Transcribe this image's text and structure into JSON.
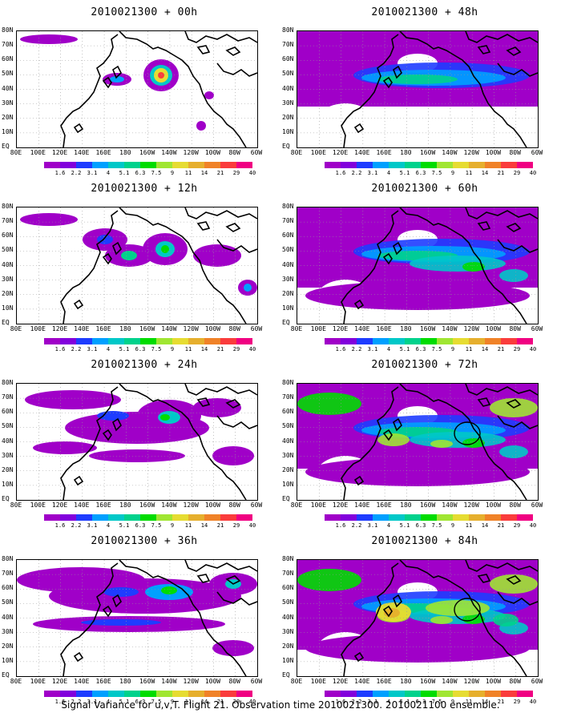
{
  "panels": [
    {
      "title": "2010021300 + 00h",
      "level": 0
    },
    {
      "title": "2010021300 + 12h",
      "level": 1
    },
    {
      "title": "2010021300 + 24h",
      "level": 2
    },
    {
      "title": "2010021300 + 36h",
      "level": 3
    },
    {
      "title": "2010021300 + 48h",
      "level": 4
    },
    {
      "title": "2010021300 + 60h",
      "level": 5
    },
    {
      "title": "2010021300 + 72h",
      "level": 6
    },
    {
      "title": "2010021300 + 84h",
      "level": 7
    }
  ],
  "lat_labels": [
    "80N",
    "70N",
    "60N",
    "50N",
    "40N",
    "30N",
    "20N",
    "10N",
    "EQ"
  ],
  "lon_labels": [
    "80E",
    "100E",
    "120E",
    "140E",
    "160E",
    "180",
    "160W",
    "140W",
    "120W",
    "100W",
    "80W",
    "60W"
  ],
  "colorbar": {
    "labels": [
      "1.6",
      "2.2",
      "3.1",
      "4",
      "5.1",
      "6.3",
      "7.5",
      "9",
      "11",
      "14",
      "21",
      "29",
      "40"
    ],
    "colors": [
      "#a000c8",
      "#8200dc",
      "#1e3cff",
      "#00a0ff",
      "#00c8c8",
      "#00d28c",
      "#00dc00",
      "#a0e632",
      "#e6dc32",
      "#e6af2d",
      "#f08228",
      "#fa3c3c",
      "#f00082"
    ]
  },
  "footer": "Signal Variance for u,v,T. Flight 21. Observation time 2010021300. 2010021100 ensemble."
}
